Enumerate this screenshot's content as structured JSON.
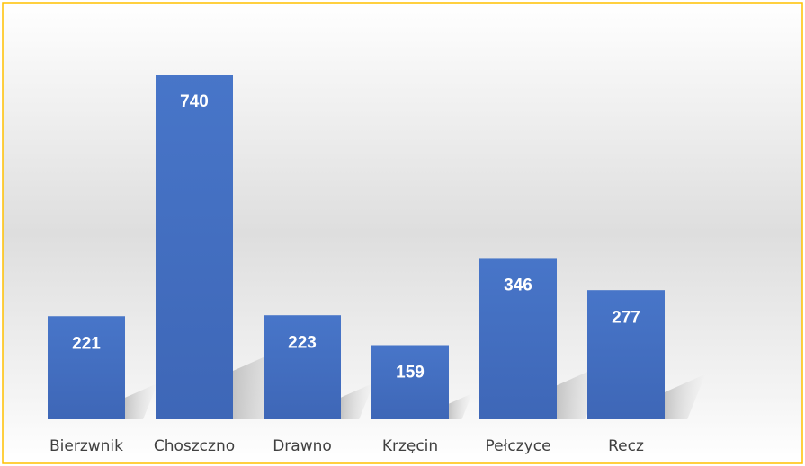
{
  "chart_data": {
    "type": "bar",
    "categories": [
      "Bierzwnik",
      "Choszczno",
      "Drawno",
      "Krzęcin",
      "Pełczyce",
      "Recz"
    ],
    "values": [
      221,
      740,
      223,
      159,
      346,
      277
    ],
    "color": "#4472c4",
    "grid": false
  }
}
